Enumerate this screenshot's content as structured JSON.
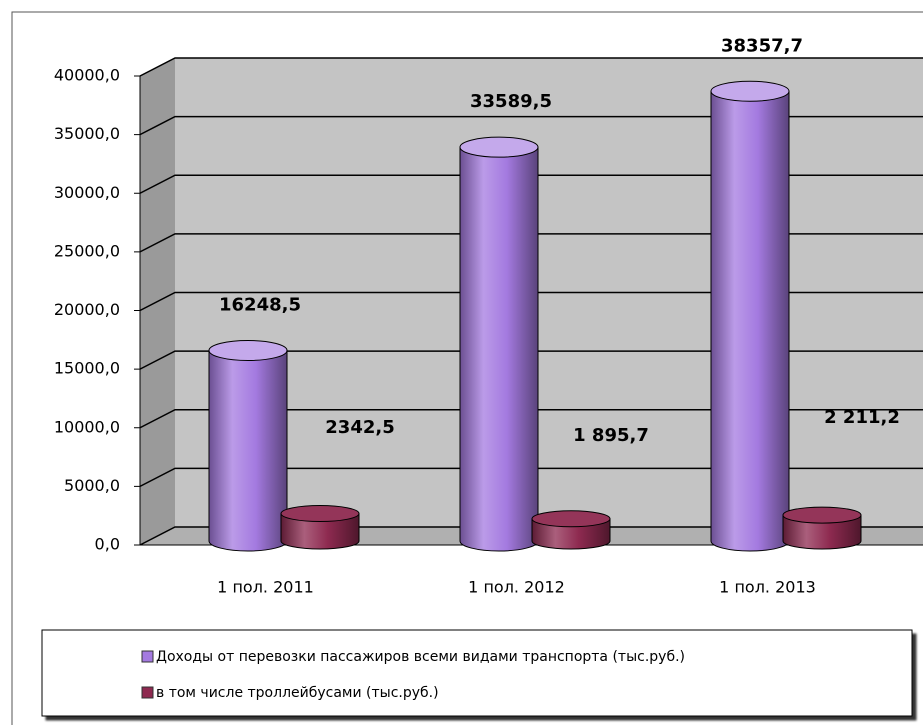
{
  "chart_data": {
    "type": "bar3d",
    "categories": [
      "1 пол. 2011",
      "1 пол. 2012",
      "1 пол. 2013"
    ],
    "series": [
      {
        "name": "Доходы от перевозки пассажиров всеми видами транспорта (тыс.руб.)",
        "color": "#a47ae0",
        "values": [
          16248.5,
          33589.5,
          38357.7
        ],
        "value_labels": [
          "16248,5",
          "33589,5",
          "38357,7"
        ]
      },
      {
        "name": "в том числе троллейбусами (тыс.руб.)",
        "color": "#8e2a50",
        "values": [
          2342.5,
          1895.7,
          2211.2
        ],
        "value_labels": [
          "2342,5",
          "1 895,7",
          "2 211,2"
        ]
      }
    ],
    "ylim": [
      0,
      40000
    ],
    "yticks": [
      {
        "value": 0,
        "label": "0,0"
      },
      {
        "value": 5000,
        "label": "5000,0"
      },
      {
        "value": 10000,
        "label": "10000,0"
      },
      {
        "value": 15000,
        "label": "15000,0"
      },
      {
        "value": 20000,
        "label": "20000,0"
      },
      {
        "value": 25000,
        "label": "25000,0"
      },
      {
        "value": 30000,
        "label": "30000,0"
      },
      {
        "value": 35000,
        "label": "35000,0"
      },
      {
        "value": 40000,
        "label": "40000,0"
      }
    ],
    "grid": true,
    "legend": "bottom"
  }
}
